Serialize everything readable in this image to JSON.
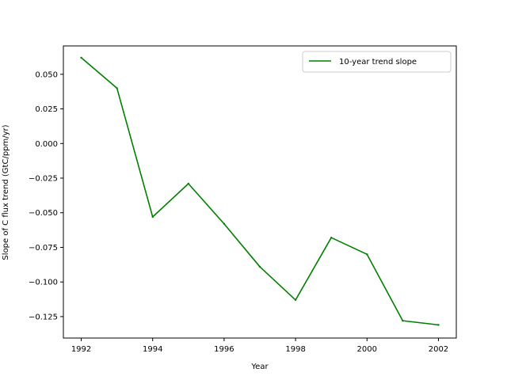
{
  "chart_data": {
    "type": "line",
    "title": "",
    "xlabel": "Year",
    "ylabel": "Slope of C flux trend (GtC/ppm/yr)",
    "xlim": [
      1991.5,
      2002.5
    ],
    "ylim": [
      -0.1405,
      0.0705
    ],
    "xticks": [
      1992,
      1994,
      1996,
      1998,
      2000,
      2002
    ],
    "yticks": [
      0.05,
      0.025,
      0.0,
      -0.025,
      -0.05,
      -0.075,
      -0.1,
      -0.125
    ],
    "ytick_labels": [
      "0.050",
      "0.025",
      "0.000",
      "−0.025",
      "−0.050",
      "−0.075",
      "−0.100",
      "−0.125"
    ],
    "grid": false,
    "legend_position": "upper right",
    "series": [
      {
        "name": "10-year trend slope",
        "color": "#008000",
        "x": [
          1992,
          1993,
          1994,
          1995,
          1996,
          1997,
          1998,
          1999,
          2000,
          2001,
          2002
        ],
        "values": [
          0.062,
          0.04,
          -0.053,
          -0.029,
          -0.058,
          -0.089,
          -0.113,
          -0.068,
          -0.08,
          -0.128,
          -0.131
        ]
      }
    ]
  }
}
